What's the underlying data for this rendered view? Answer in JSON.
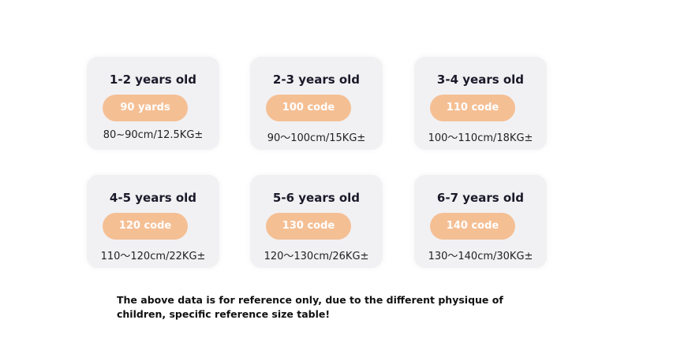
{
  "cards": [
    {
      "age": "1-2 years old",
      "size": "90 yards",
      "measure": "80~90cm/12.5KG±"
    },
    {
      "age": "2-3 years old",
      "size": "100 code",
      "measure": "90～100cm/15KG±"
    },
    {
      "age": "3-4 years old",
      "size": "110 code",
      "measure": "100～110cm/18KG±"
    },
    {
      "age": "4-5 years old",
      "size": "120 code",
      "measure": "110～120cm/22KG±"
    },
    {
      "age": "5-6 years old",
      "size": "130 code",
      "measure": "120～130cm/26KG±"
    },
    {
      "age": "6-7 years old",
      "size": "140 code",
      "measure": "130～140cm/30KG±"
    }
  ],
  "note": "The above data is for reference only, due to the different physique of children, specific reference size table!"
}
